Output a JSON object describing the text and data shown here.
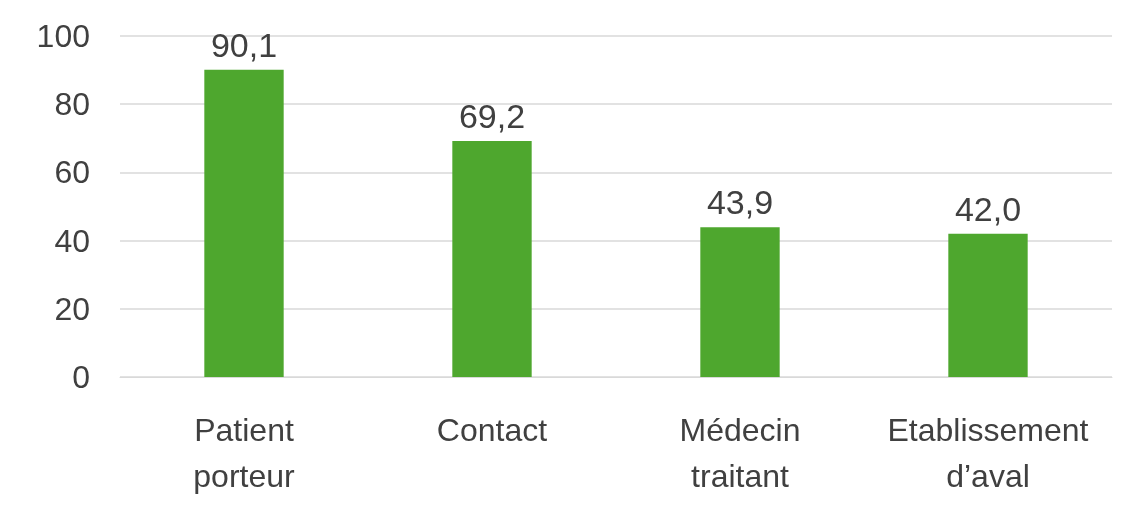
{
  "chart_data": {
    "type": "bar",
    "categories": [
      "Patient porteur",
      "Contact",
      "Médecin traitant",
      "Etablissement d’aval"
    ],
    "values": [
      90.1,
      69.2,
      43.9,
      42.0
    ],
    "value_labels": [
      "90,1",
      "69,2",
      "43,9",
      "42,0"
    ],
    "color": "#4ea72e",
    "ylim": [
      0,
      100
    ],
    "yticks": [
      0,
      20,
      40,
      60,
      80,
      100
    ],
    "grid": "y"
  }
}
